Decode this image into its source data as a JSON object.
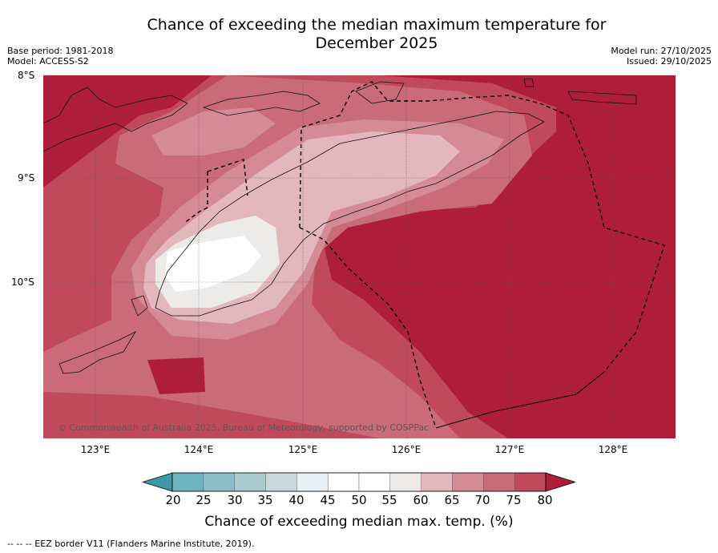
{
  "title_line1": "Chance of exceeding the median maximum temperature for",
  "title_line2": "December 2025",
  "base_period": "Base period: 1981-2018",
  "model": "Model: ACCESS-S2",
  "model_run": "Model run: 27/10/2025",
  "issued": "Issued: 29/10/2025",
  "lat_labels": [
    "8°S",
    "9°S",
    "10°S"
  ],
  "lon_labels": [
    "123°E",
    "124°E",
    "125°E",
    "126°E",
    "127°E",
    "128°E"
  ],
  "copyright": "© Commonwealth of Australia 2025, Bureau of Meteorology, supported by COSPPac",
  "colorbar": {
    "ticks": [
      "20",
      "25",
      "30",
      "35",
      "40",
      "45",
      "50",
      "55",
      "60",
      "65",
      "70",
      "75",
      "80"
    ],
    "label": "Chance of exceeding median max. temp. (%)",
    "colors": {
      "below20": "#3f98a6",
      "20-25": "#6eb3c0",
      "25-30": "#8cbcc7",
      "30-35": "#a9cacf",
      "35-40": "#cad8d9",
      "40-45": "#e8eff2",
      "45-50": "#ffffff",
      "50-55": "#ffffff",
      "55-60": "#ecebea",
      "60-65": "#e2b8be",
      "65-70": "#d58b95",
      "70-75": "#c96b78",
      "75-80": "#c04a5c",
      "above80": "#ae1e3b"
    }
  },
  "footnote": "--  --  -- EEZ border V11 (Flanders Marine Institute, 2019)."
}
